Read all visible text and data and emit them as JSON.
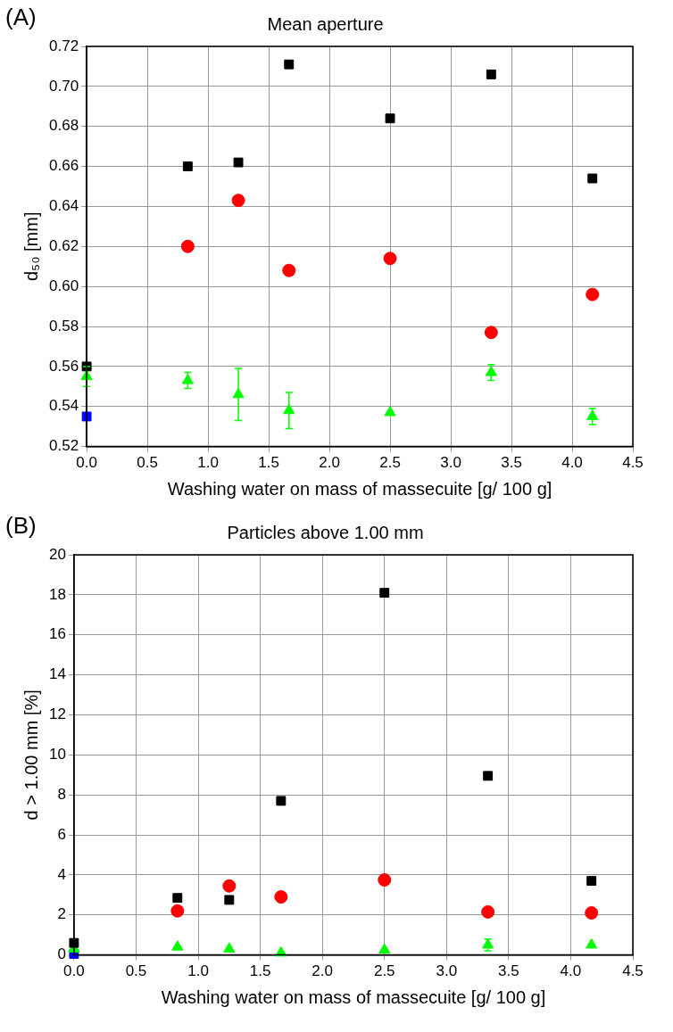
{
  "chart_data": [
    {
      "type": "scatter",
      "title": "Mean aperture",
      "xlabel": "Washing water on mass of massecuite [g/ 100 g]",
      "ylabel": "d₅₀ [mm]",
      "annotations": [
        "(A)"
      ],
      "x": [
        0,
        0.833,
        1.25,
        1.667,
        2.5,
        3.333,
        4.167
      ],
      "series": [
        {
          "color": "#000000",
          "marker": "square",
          "values": [
            0.56,
            0.66,
            0.662,
            0.711,
            0.684,
            0.706,
            0.654
          ]
        },
        {
          "color": "#ff0000",
          "marker": "circle",
          "values": [
            null,
            0.62,
            0.643,
            0.608,
            0.614,
            0.577,
            0.596
          ]
        },
        {
          "color": "#00ff00",
          "marker": "triangle",
          "values": [
            0.555,
            0.553,
            0.546,
            0.538,
            0.537,
            0.557,
            0.535
          ],
          "errors": [
            0.005,
            0.004,
            0.013,
            0.009,
            null,
            0.004,
            0.004
          ]
        },
        {
          "color": "#0000ff",
          "marker": "square",
          "values": [
            0.535,
            null,
            null,
            null,
            null,
            null,
            null
          ]
        }
      ],
      "xlim": [
        0,
        4.5
      ],
      "xticks": [
        {
          "value": 0,
          "label": "0.0"
        },
        {
          "value": 0.5,
          "label": "0.5"
        },
        {
          "value": 1,
          "label": "1.0"
        },
        {
          "value": 1.5,
          "label": "1.5"
        },
        {
          "value": 2,
          "label": "2.0"
        },
        {
          "value": 2.5,
          "label": "2.5"
        },
        {
          "value": 3,
          "label": "3.0"
        },
        {
          "value": 3.5,
          "label": "3.5"
        },
        {
          "value": 4,
          "label": "4.0"
        },
        {
          "value": 4.5,
          "label": "4.5"
        }
      ],
      "ylim": [
        0.52,
        0.72
      ],
      "yticks": [
        {
          "value": 0.52,
          "label": "0.52"
        },
        {
          "value": 0.54,
          "label": "0.54"
        },
        {
          "value": 0.56,
          "label": "0.56"
        },
        {
          "value": 0.58,
          "label": "0.58"
        },
        {
          "value": 0.6,
          "label": "0.60"
        },
        {
          "value": 0.62,
          "label": "0.62"
        },
        {
          "value": 0.64,
          "label": "0.64"
        },
        {
          "value": 0.66,
          "label": "0.66"
        },
        {
          "value": 0.68,
          "label": "0.68"
        },
        {
          "value": 0.7,
          "label": "0.70"
        },
        {
          "value": 0.72,
          "label": "0.72"
        }
      ],
      "grid": true
    },
    {
      "type": "scatter",
      "title": "Particles above 1.00 mm",
      "xlabel": "Washing water on mass of massecuite [g/ 100 g]",
      "ylabel": "d > 1.00 mm [%]",
      "annotations": [
        "(B)"
      ],
      "x": [
        0,
        0.833,
        1.25,
        1.667,
        2.5,
        3.333,
        4.167
      ],
      "series": [
        {
          "color": "#000000",
          "marker": "square",
          "values": [
            0.6,
            2.85,
            2.75,
            7.7,
            18.1,
            8.95,
            3.7
          ]
        },
        {
          "color": "#ff0000",
          "marker": "circle",
          "values": [
            null,
            2.2,
            3.45,
            2.9,
            3.75,
            2.15,
            2.1
          ]
        },
        {
          "color": "#00ff00",
          "marker": "triangle",
          "values": [
            0.3,
            0.4,
            0.3,
            0.1,
            0.25,
            0.5,
            0.5
          ],
          "errors": [
            null,
            null,
            null,
            null,
            null,
            0.3,
            null
          ]
        },
        {
          "color": "#0000ff",
          "marker": "square",
          "values": [
            0.05,
            null,
            null,
            null,
            null,
            null,
            null
          ]
        }
      ],
      "xlim": [
        0,
        4.5
      ],
      "xticks": [
        {
          "value": 0,
          "label": "0.0"
        },
        {
          "value": 0.5,
          "label": "0.5"
        },
        {
          "value": 1,
          "label": "1.0"
        },
        {
          "value": 1.5,
          "label": "1.5"
        },
        {
          "value": 2,
          "label": "2.0"
        },
        {
          "value": 2.5,
          "label": "2.5"
        },
        {
          "value": 3,
          "label": "3.0"
        },
        {
          "value": 3.5,
          "label": "3.5"
        },
        {
          "value": 4,
          "label": "4.0"
        },
        {
          "value": 4.5,
          "label": "4.5"
        }
      ],
      "ylim": [
        0,
        20
      ],
      "yticks": [
        0,
        2,
        4,
        6,
        8,
        10,
        12,
        14,
        16,
        18,
        20
      ],
      "grid": true
    }
  ]
}
